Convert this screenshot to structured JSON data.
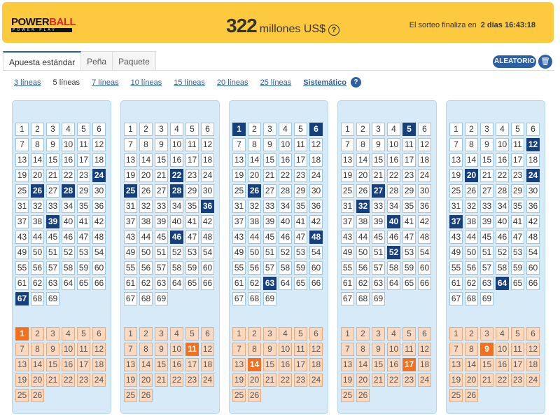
{
  "header": {
    "logo_text": "POWERBALL",
    "logo_sub": "POWER PLAY",
    "jackpot_amount": "322",
    "jackpot_unit": "millones US$",
    "draw_label": "El sorteo finaliza en",
    "draw_countdown": "2 días 16:43:18",
    "help_icon": "?"
  },
  "tabs": [
    {
      "label": "Apuesta estándar",
      "active": true
    },
    {
      "label": "Peña"
    },
    {
      "label": "Paquete"
    }
  ],
  "actions": {
    "random_label": "ALEATORIO",
    "trash_icon": "trash-icon"
  },
  "line_options": [
    {
      "label": "3 líneas"
    },
    {
      "label": "5 líneas",
      "active": true
    },
    {
      "label": "7 líneas"
    },
    {
      "label": "10 líneas"
    },
    {
      "label": "15 líneas"
    },
    {
      "label": "20 líneas"
    },
    {
      "label": "25 líneas"
    },
    {
      "label": "Sistemático"
    }
  ],
  "main_range": 69,
  "powerball_range": 26,
  "colors": {
    "selected_main": "#163f7e",
    "selected_pb": "#f2701f",
    "header": "#fdc93f"
  },
  "panels": [
    {
      "main": [
        24,
        26,
        28,
        39,
        67
      ],
      "powerball": [
        1
      ]
    },
    {
      "main": [
        22,
        25,
        28,
        36,
        46
      ],
      "powerball": [
        11
      ]
    },
    {
      "main": [
        1,
        6,
        26,
        48,
        63
      ],
      "powerball": [
        14
      ]
    },
    {
      "main": [
        5,
        27,
        32,
        40,
        52
      ],
      "powerball": [
        17
      ]
    },
    {
      "main": [
        12,
        20,
        24,
        37,
        64
      ],
      "powerball": [
        9
      ]
    }
  ]
}
